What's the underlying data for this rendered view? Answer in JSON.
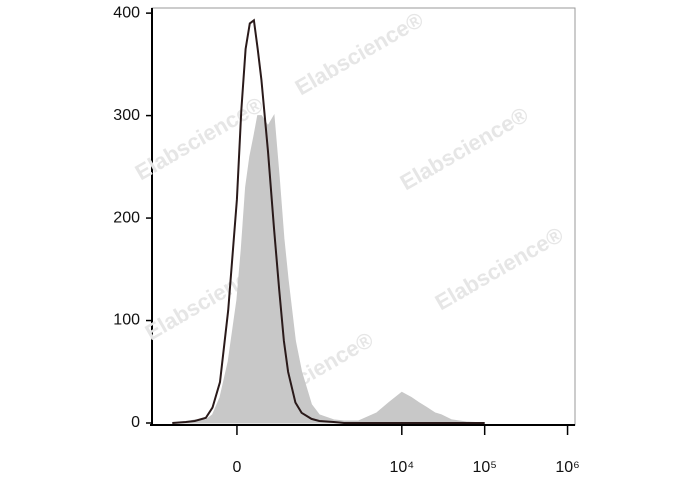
{
  "chart_data": {
    "type": "histogram-overlay",
    "xscale": "biexponential",
    "xlim": [
      -1076,
      1230000
    ],
    "xticks": [
      0,
      {
        "value": 10000,
        "label": "10⁴"
      },
      {
        "value": 100000,
        "label": "10⁵"
      },
      {
        "value": 1000000,
        "label": "10⁶"
      }
    ],
    "ylim": [
      0,
      405
    ],
    "yticks": [
      0,
      100,
      200,
      300,
      400
    ],
    "x": [
      -600,
      -400,
      -300,
      -200,
      -150,
      -100,
      -50,
      0,
      25,
      50,
      75,
      100,
      125,
      150,
      200,
      250,
      300,
      350,
      400,
      500,
      600,
      800,
      1000,
      1500,
      2000,
      3000,
      5000,
      7000,
      10000,
      13000,
      16000,
      20000,
      25000,
      30000,
      40000,
      60000,
      100000
    ],
    "series": [
      {
        "color": "#c8c8c8",
        "filled": true,
        "values": [
          0,
          1,
          3,
          3,
          8,
          25,
          60,
          120,
          170,
          230,
          260,
          280,
          300,
          300,
          290,
          300,
          240,
          180,
          140,
          80,
          50,
          18,
          8,
          3,
          2,
          2,
          10,
          20,
          30,
          25,
          20,
          15,
          10,
          8,
          3,
          1,
          0
        ]
      },
      {
        "color": "#2a1a1a",
        "filled": false,
        "values": [
          0,
          1,
          2,
          5,
          15,
          40,
          110,
          218,
          305,
          365,
          390,
          393,
          365,
          335,
          265,
          190,
          130,
          80,
          50,
          20,
          10,
          4,
          2,
          1,
          0,
          0,
          0,
          0,
          0,
          0,
          0,
          0,
          0,
          0,
          0,
          0,
          0
        ]
      }
    ],
    "watermarks": [
      "Elabscience®",
      "Elabscience®",
      "Elabscience®",
      "Elabscience®",
      "Elabscience®",
      "Elabscience®"
    ]
  }
}
